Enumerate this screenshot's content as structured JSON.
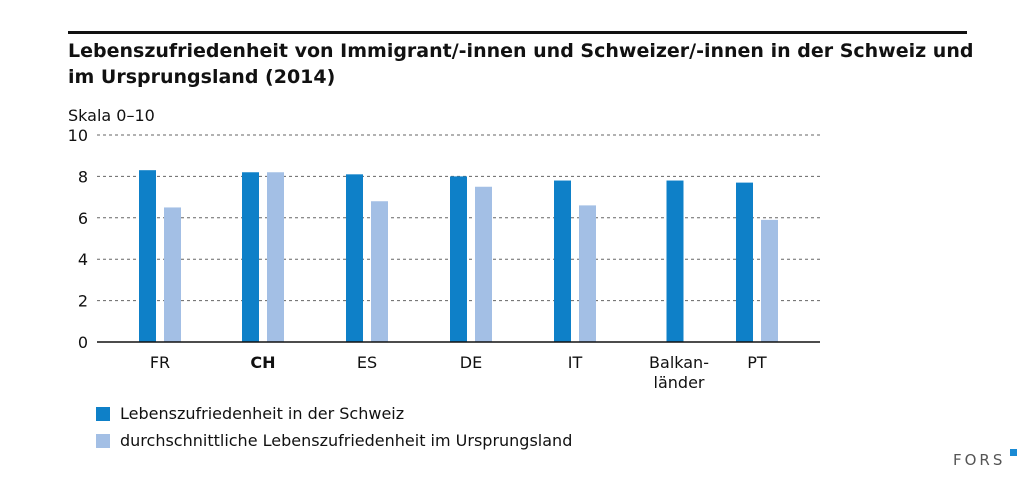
{
  "chart_data": {
    "type": "bar",
    "title": "Lebenszufriedenheit von Immigrant/-innen und Schweizer/-innen in der Schweiz und im Ursprungsland (2014)",
    "ylabel": "Skala 0–10",
    "ylim": [
      0,
      10
    ],
    "yticks": [
      "0",
      "2",
      "4",
      "6",
      "8",
      "10"
    ],
    "grid": true,
    "legend_placement": "bottom",
    "categories": [
      "FR",
      "CH",
      "ES",
      "DE",
      "IT",
      "Balkan-\nländer",
      "PT"
    ],
    "bold_category": "CH",
    "series": [
      {
        "name": "Lebenszufriedenheit in der Schweiz",
        "color": "#0e80c8",
        "values": [
          8.3,
          8.2,
          8.1,
          8.0,
          7.8,
          7.8,
          7.7
        ]
      },
      {
        "name": "durchschnittliche Lebenszufriedenheit im Ursprungsland",
        "color": "#a3bfe5",
        "values": [
          6.5,
          8.2,
          6.8,
          7.5,
          6.6,
          null,
          5.9
        ]
      }
    ]
  },
  "logo": "FORS"
}
